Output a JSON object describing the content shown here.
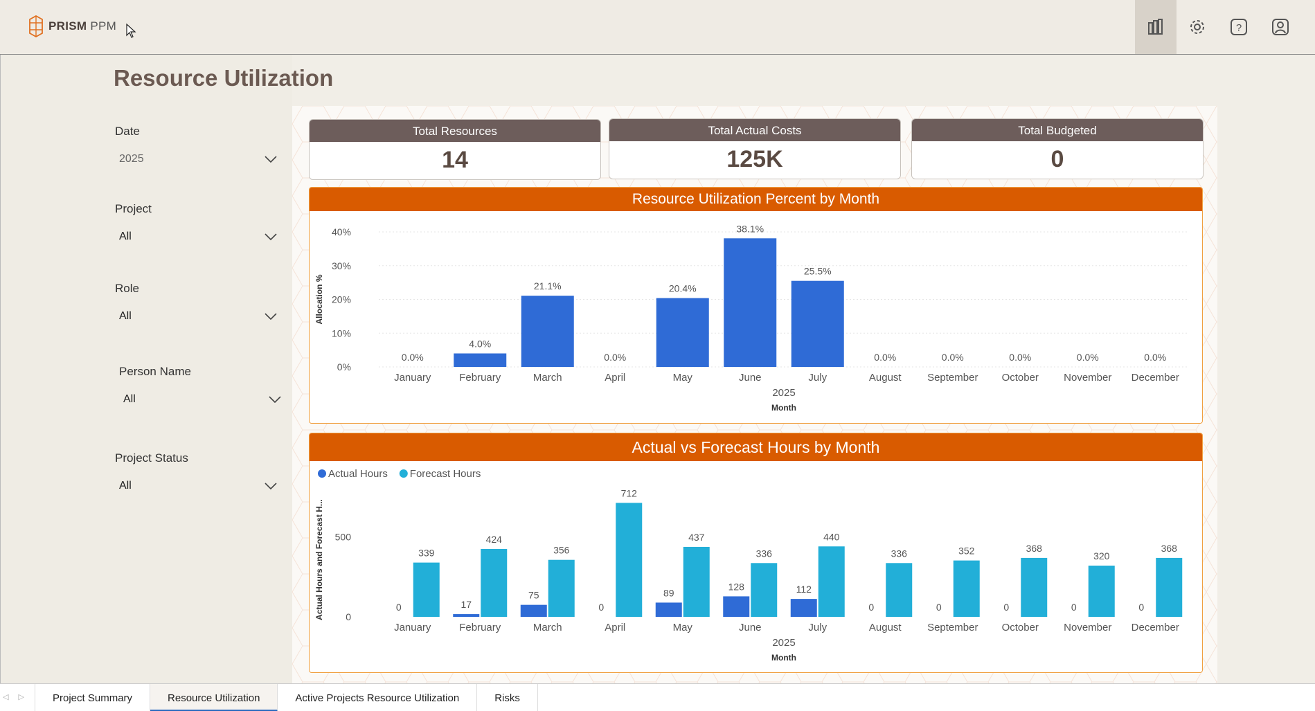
{
  "app": {
    "logo_bold": "PRISM",
    "logo_light": "PPM"
  },
  "header_icons": [
    {
      "name": "powerbi-icon",
      "active": true
    },
    {
      "name": "gear-icon",
      "active": false
    },
    {
      "name": "help-icon",
      "active": false
    },
    {
      "name": "user-icon",
      "active": false
    }
  ],
  "page": {
    "title": "Resource Utilization"
  },
  "filters": {
    "date": {
      "label": "Date",
      "value": "2025"
    },
    "project": {
      "label": "Project",
      "value": "All"
    },
    "role": {
      "label": "Role",
      "value": "All"
    },
    "person": {
      "label": "Person Name",
      "value": "All"
    },
    "status": {
      "label": "Project Status",
      "value": "All"
    }
  },
  "kpis": {
    "total_resources": {
      "label": "Total Resources",
      "value": "14"
    },
    "total_actual_costs": {
      "label": "Total Actual Costs",
      "value": "125K"
    },
    "total_budgeted": {
      "label": "Total Budgeted",
      "value": "0"
    }
  },
  "colors": {
    "actual": "#2f6bd6",
    "forecast": "#22afd8",
    "header": "#d95b00",
    "kpi_head": "#6d5d5b"
  },
  "chart_data": [
    {
      "type": "bar",
      "title": "Resource Utilization Percent by Month",
      "categories": [
        "January",
        "February",
        "March",
        "April",
        "May",
        "June",
        "July",
        "August",
        "September",
        "October",
        "November",
        "December"
      ],
      "values": [
        0.0,
        4.0,
        21.1,
        0.0,
        20.4,
        38.1,
        25.5,
        0.0,
        0.0,
        0.0,
        0.0,
        0.0
      ],
      "data_labels": [
        "0.0%",
        "4.0%",
        "21.1%",
        "0.0%",
        "20.4%",
        "38.1%",
        "25.5%",
        "0.0%",
        "0.0%",
        "0.0%",
        "0.0%",
        "0.0%"
      ],
      "y_ticks": [
        "0%",
        "10%",
        "20%",
        "30%",
        "40%"
      ],
      "ylim": [
        0,
        40
      ],
      "ylabel": "Allocation %",
      "xlabel": "Month",
      "x_group_label": "2025"
    },
    {
      "type": "bar",
      "title": "Actual vs Forecast Hours by Month",
      "categories": [
        "January",
        "February",
        "March",
        "April",
        "May",
        "June",
        "July",
        "August",
        "September",
        "October",
        "November",
        "December"
      ],
      "series": [
        {
          "name": "Actual Hours",
          "values": [
            0,
            17,
            75,
            0,
            89,
            128,
            112,
            0,
            0,
            0,
            0,
            0
          ]
        },
        {
          "name": "Forecast Hours",
          "values": [
            339,
            424,
            356,
            712,
            437,
            336,
            440,
            336,
            352,
            368,
            320,
            368
          ]
        }
      ],
      "y_ticks": [
        "0",
        "500"
      ],
      "ylim": [
        0,
        800
      ],
      "ylabel": "Actual Hours and Forecast H...",
      "xlabel": "Month",
      "x_group_label": "2025"
    }
  ],
  "tabs": [
    {
      "label": "Project Summary",
      "active": false
    },
    {
      "label": "Resource Utilization",
      "active": true
    },
    {
      "label": "Active Projects Resource Utilization",
      "active": false
    },
    {
      "label": "Risks",
      "active": false
    }
  ]
}
